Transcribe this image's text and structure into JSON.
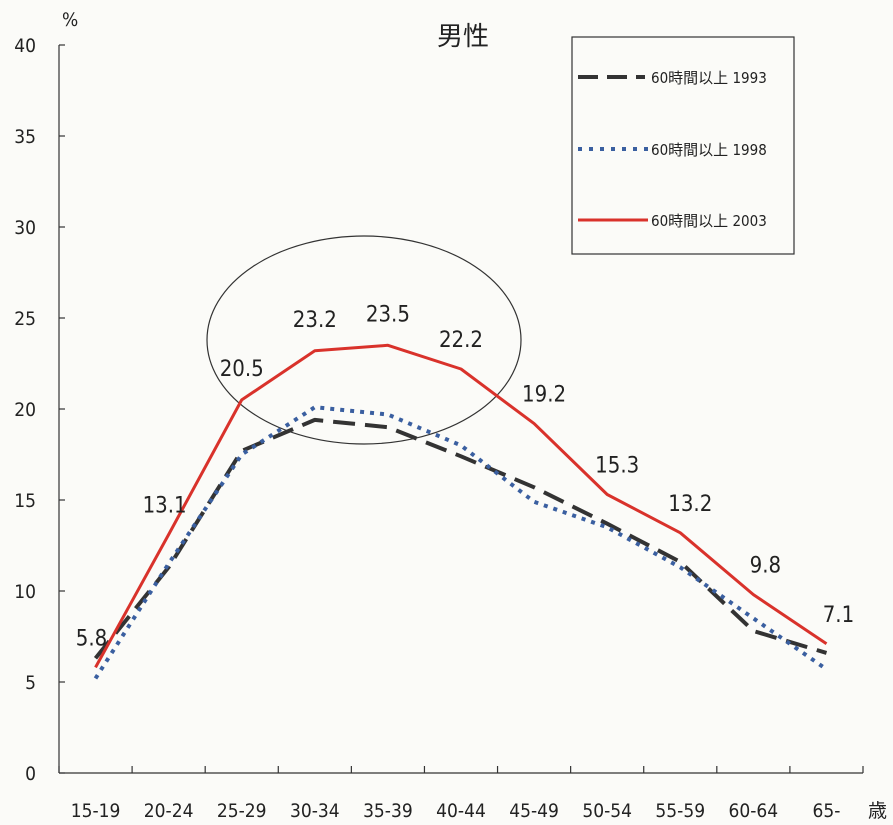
{
  "chart_data": {
    "type": "line",
    "title": "男性",
    "y_unit": "%",
    "x_unit": "歳",
    "categories": [
      "15-19",
      "20-24",
      "25-29",
      "30-34",
      "35-39",
      "40-44",
      "45-49",
      "50-54",
      "55-59",
      "60-64",
      "65-"
    ],
    "ylim": [
      0,
      40
    ],
    "yticks": [
      0,
      5,
      10,
      15,
      20,
      25,
      30,
      35,
      40
    ],
    "grid": false,
    "legend_position": "top-right",
    "series": [
      {
        "name": "60時間以上 1993",
        "color": "#333333",
        "style": "dashed",
        "values": [
          6.3,
          11.3,
          17.7,
          19.4,
          19.0,
          17.4,
          15.7,
          13.7,
          11.6,
          7.8,
          6.6
        ]
      },
      {
        "name": "60時間以上 1998",
        "color": "#3a5fa0",
        "style": "dotted",
        "values": [
          5.2,
          11.5,
          17.5,
          20.1,
          19.7,
          18.0,
          14.9,
          13.5,
          11.3,
          8.5,
          5.7
        ]
      },
      {
        "name": "60時間以上 2003",
        "color": "#d9322b",
        "style": "solid",
        "values": [
          5.8,
          13.1,
          20.5,
          23.2,
          23.5,
          22.2,
          19.2,
          15.3,
          13.2,
          9.8,
          7.1
        ],
        "data_labels": [
          "5.8",
          "13.1",
          "20.5",
          "23.2",
          "23.5",
          "22.2",
          "19.2",
          "15.3",
          "13.2",
          "9.8",
          "7.1"
        ]
      }
    ],
    "annotations": [
      {
        "type": "ellipse",
        "note": "circle around 25-29 to 40-44 peak"
      }
    ]
  }
}
